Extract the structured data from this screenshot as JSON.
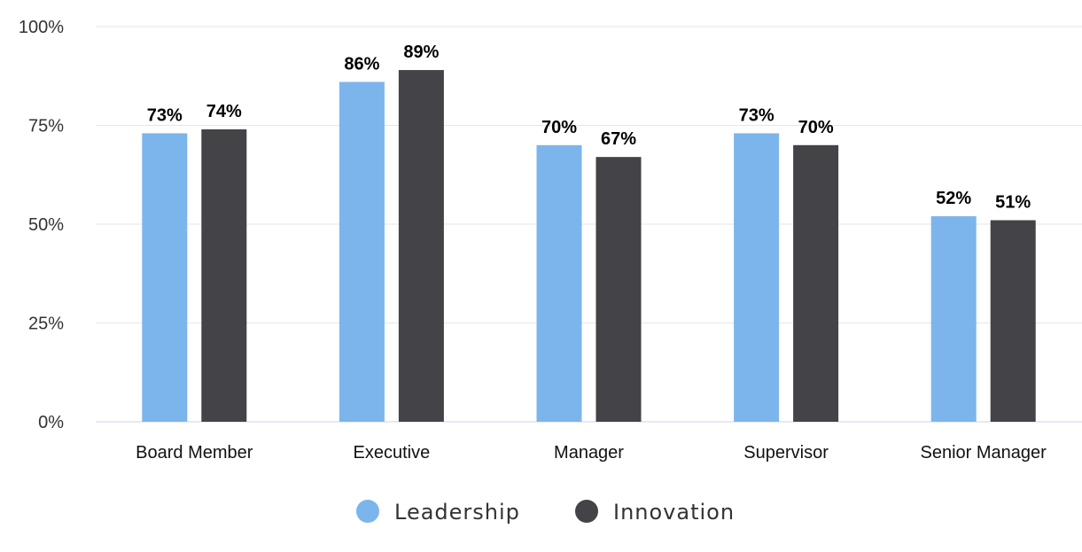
{
  "chart_data": {
    "type": "bar",
    "title": "",
    "xlabel": "",
    "ylabel": "",
    "categories": [
      "Board Member",
      "Executive",
      "Manager",
      "Supervisor",
      "Senior Manager"
    ],
    "series": [
      {
        "name": "Leadership",
        "color": "#7cb5ec",
        "values": [
          73,
          86,
          70,
          73,
          52
        ],
        "labels": [
          "73%",
          "86%",
          "70%",
          "73%",
          "52%"
        ]
      },
      {
        "name": "Innovation",
        "color": "#434348",
        "values": [
          74,
          89,
          67,
          70,
          51
        ],
        "labels": [
          "74%",
          "89%",
          "67%",
          "70%",
          "51%"
        ]
      }
    ],
    "ylim": [
      0,
      100
    ],
    "yticks": [
      0,
      25,
      50,
      75,
      100
    ],
    "ytick_labels": [
      "0%",
      "25%",
      "50%",
      "75%",
      "100%"
    ],
    "grid": true,
    "legend_position": "bottom-center",
    "data_labels": true
  }
}
